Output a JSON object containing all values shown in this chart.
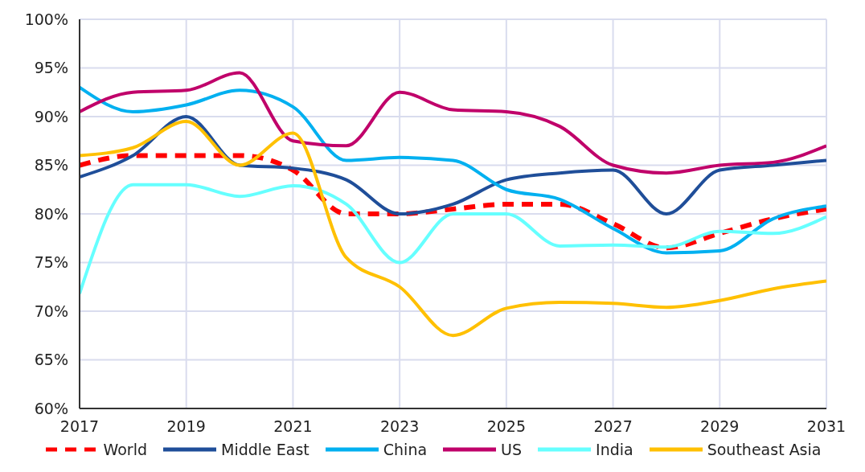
{
  "chart_data": {
    "type": "line",
    "x": [
      2017,
      2018,
      2019,
      2020,
      2021,
      2022,
      2023,
      2024,
      2025,
      2026,
      2027,
      2028,
      2029,
      2030,
      2031
    ],
    "series": [
      {
        "name": "World",
        "color": "#ff0000",
        "line_style": "dashed",
        "values": [
          85,
          86,
          86,
          86,
          84.5,
          80,
          80,
          80.5,
          81,
          81,
          79,
          76.5,
          78,
          79.5,
          80.5
        ]
      },
      {
        "name": "Middle East",
        "color": "#1f4e99",
        "values": [
          83.8,
          86,
          90,
          85,
          84.7,
          83.5,
          80,
          81,
          83.5,
          84.2,
          84.5,
          80,
          84.5,
          85,
          85.5
        ]
      },
      {
        "name": "China",
        "color": "#00b0f0",
        "values": [
          93,
          90.5,
          91.2,
          92.7,
          91,
          85.5,
          85.8,
          85.5,
          82.5,
          81.5,
          78.5,
          76,
          76.2,
          79.5,
          80.8
        ]
      },
      {
        "name": "US",
        "color": "#c0006a",
        "values": [
          90.5,
          92.5,
          92.7,
          94.5,
          87.5,
          87,
          92.5,
          90.7,
          90.5,
          89,
          85,
          84.2,
          85,
          85.3,
          87
        ]
      },
      {
        "name": "India",
        "color": "#66ffff",
        "values": [
          71.8,
          83,
          83,
          81.8,
          82.9,
          81,
          75,
          80,
          80,
          76.7,
          76.8,
          76.6,
          78.2,
          78,
          79.7
        ]
      },
      {
        "name": "Southeast Asia",
        "color": "#ffc000",
        "values": [
          86,
          86.8,
          89.5,
          85,
          88.3,
          75.5,
          72.5,
          67.5,
          70.3,
          70.9,
          70.8,
          70.4,
          71.1,
          72.3,
          73.1
        ]
      }
    ],
    "xlim": [
      2017,
      2031
    ],
    "xticks": [
      2017,
      2019,
      2021,
      2023,
      2025,
      2027,
      2029,
      2031
    ],
    "ylim": [
      60,
      100
    ],
    "yticks": [
      {
        "value": 60,
        "label": "60%"
      },
      {
        "value": 65,
        "label": "65%"
      },
      {
        "value": 70,
        "label": "70%"
      },
      {
        "value": 75,
        "label": "75%"
      },
      {
        "value": 80,
        "label": "80%"
      },
      {
        "value": 85,
        "label": "85%"
      },
      {
        "value": 90,
        "label": "90%"
      },
      {
        "value": 95,
        "label": "95%"
      },
      {
        "value": 100,
        "label": "100%"
      }
    ],
    "grid": true,
    "legend": "bottom",
    "marker": "none"
  }
}
